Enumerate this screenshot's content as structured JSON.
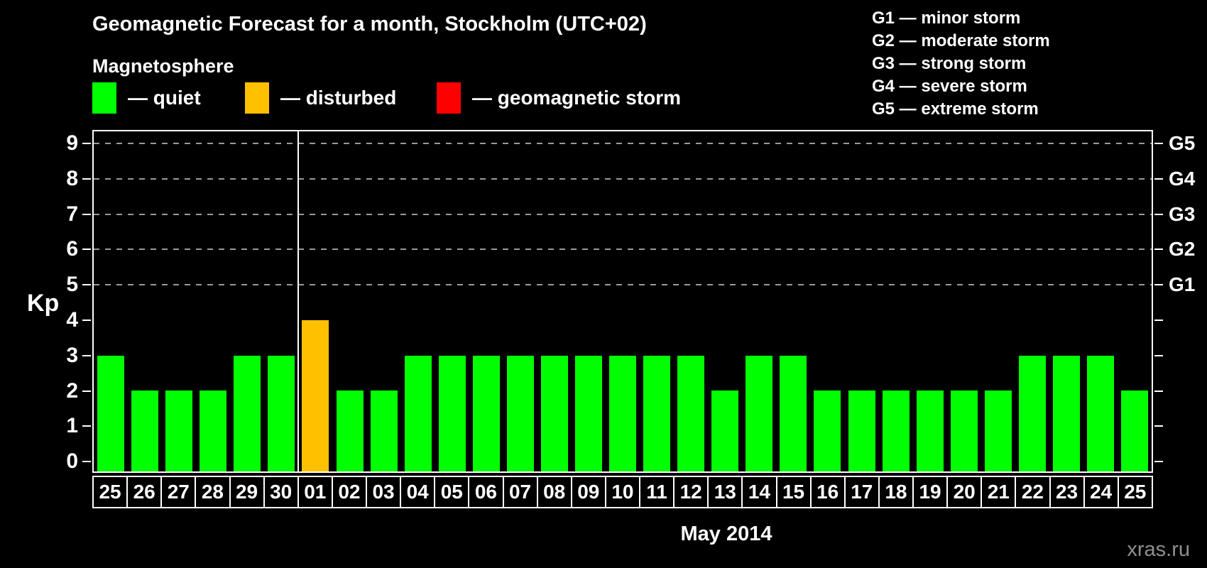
{
  "title": "Geomagnetic Forecast for a month, Stockholm (UTC+02)",
  "subtitle": "Magnetosphere",
  "colors": {
    "quiet": "#00FF00",
    "disturbed": "#FFC000",
    "storm": "#FF0000",
    "background": "#000000",
    "axis": "#FFFFFF",
    "gridline": "#9A9A9A",
    "watermark": "#8F8F8F"
  },
  "legend": {
    "items": [
      {
        "status": "quiet",
        "label": "— quiet"
      },
      {
        "status": "disturbed",
        "label": "— disturbed"
      },
      {
        "status": "storm",
        "label": "— geomagnetic storm"
      }
    ]
  },
  "storm_scale_legend": {
    "items": [
      "G1 — minor storm",
      "G2 — moderate storm",
      "G3 — strong storm",
      "G4 — severe storm",
      "G5 — extreme storm"
    ]
  },
  "chart_data": {
    "type": "bar",
    "title": "Geomagnetic Forecast for a month, Stockholm (UTC+02)",
    "ylabel": "Kp",
    "xlabel": "May 2014",
    "ylim": [
      0,
      9
    ],
    "yticks": [
      0,
      1,
      2,
      3,
      4,
      5,
      6,
      7,
      8,
      9
    ],
    "gridlines_at": [
      5,
      6,
      7,
      8,
      9
    ],
    "grid": "dashed",
    "right_axis_labels": [
      {
        "kp": 5,
        "label": "G1"
      },
      {
        "kp": 6,
        "label": "G2"
      },
      {
        "kp": 7,
        "label": "G3"
      },
      {
        "kp": 8,
        "label": "G4"
      },
      {
        "kp": 9,
        "label": "G5"
      }
    ],
    "categories": [
      "25",
      "26",
      "27",
      "28",
      "29",
      "30",
      "01",
      "02",
      "03",
      "04",
      "05",
      "06",
      "07",
      "08",
      "09",
      "10",
      "11",
      "12",
      "13",
      "14",
      "15",
      "16",
      "17",
      "18",
      "19",
      "20",
      "21",
      "22",
      "23",
      "24",
      "25"
    ],
    "values": [
      3,
      2,
      2,
      2,
      3,
      3,
      4,
      2,
      2,
      3,
      3,
      3,
      3,
      3,
      3,
      3,
      3,
      3,
      2,
      3,
      3,
      2,
      2,
      2,
      2,
      2,
      2,
      3,
      3,
      3,
      2
    ],
    "statuses": [
      "quiet",
      "quiet",
      "quiet",
      "quiet",
      "quiet",
      "quiet",
      "disturbed",
      "quiet",
      "quiet",
      "quiet",
      "quiet",
      "quiet",
      "quiet",
      "quiet",
      "quiet",
      "quiet",
      "quiet",
      "quiet",
      "quiet",
      "quiet",
      "quiet",
      "quiet",
      "quiet",
      "quiet",
      "quiet",
      "quiet",
      "quiet",
      "quiet",
      "quiet",
      "quiet",
      "quiet"
    ],
    "month_separator_after_index": 5
  },
  "watermark": "xras.ru"
}
